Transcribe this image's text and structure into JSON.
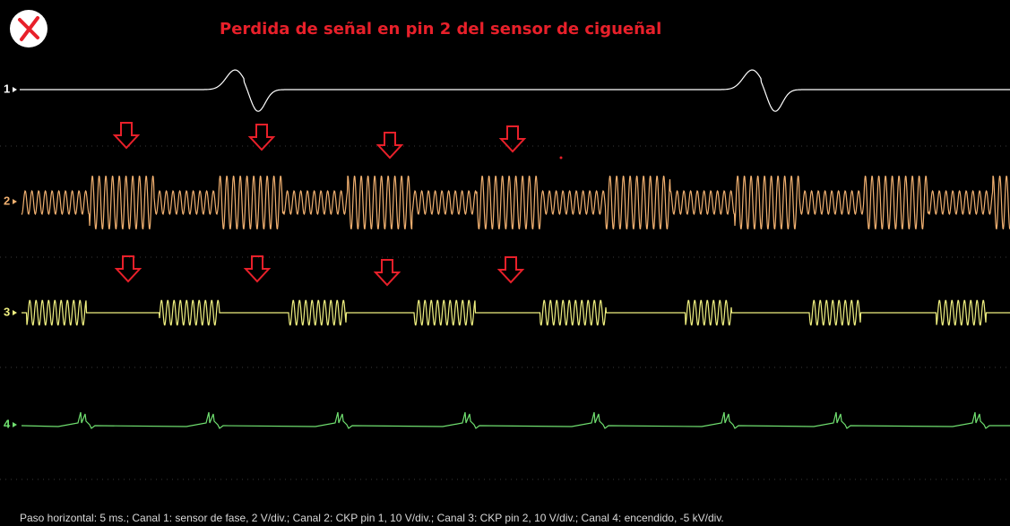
{
  "header": {
    "title": "Perdida de señal en pin 2 del sensor de cigueñal"
  },
  "channels": [
    {
      "label": "1"
    },
    {
      "label": "2"
    },
    {
      "label": "3"
    },
    {
      "label": "4"
    }
  ],
  "footer": "Paso horizontal: 5 ms.; Canal 1: sensor de fase, 2 V/div.; Canal 2: CKP pin 1, 10 V/div.; Canal 3: CKP pin 2, 10 V/div.; Canal 4: encendido, -5 kV/div."
}
